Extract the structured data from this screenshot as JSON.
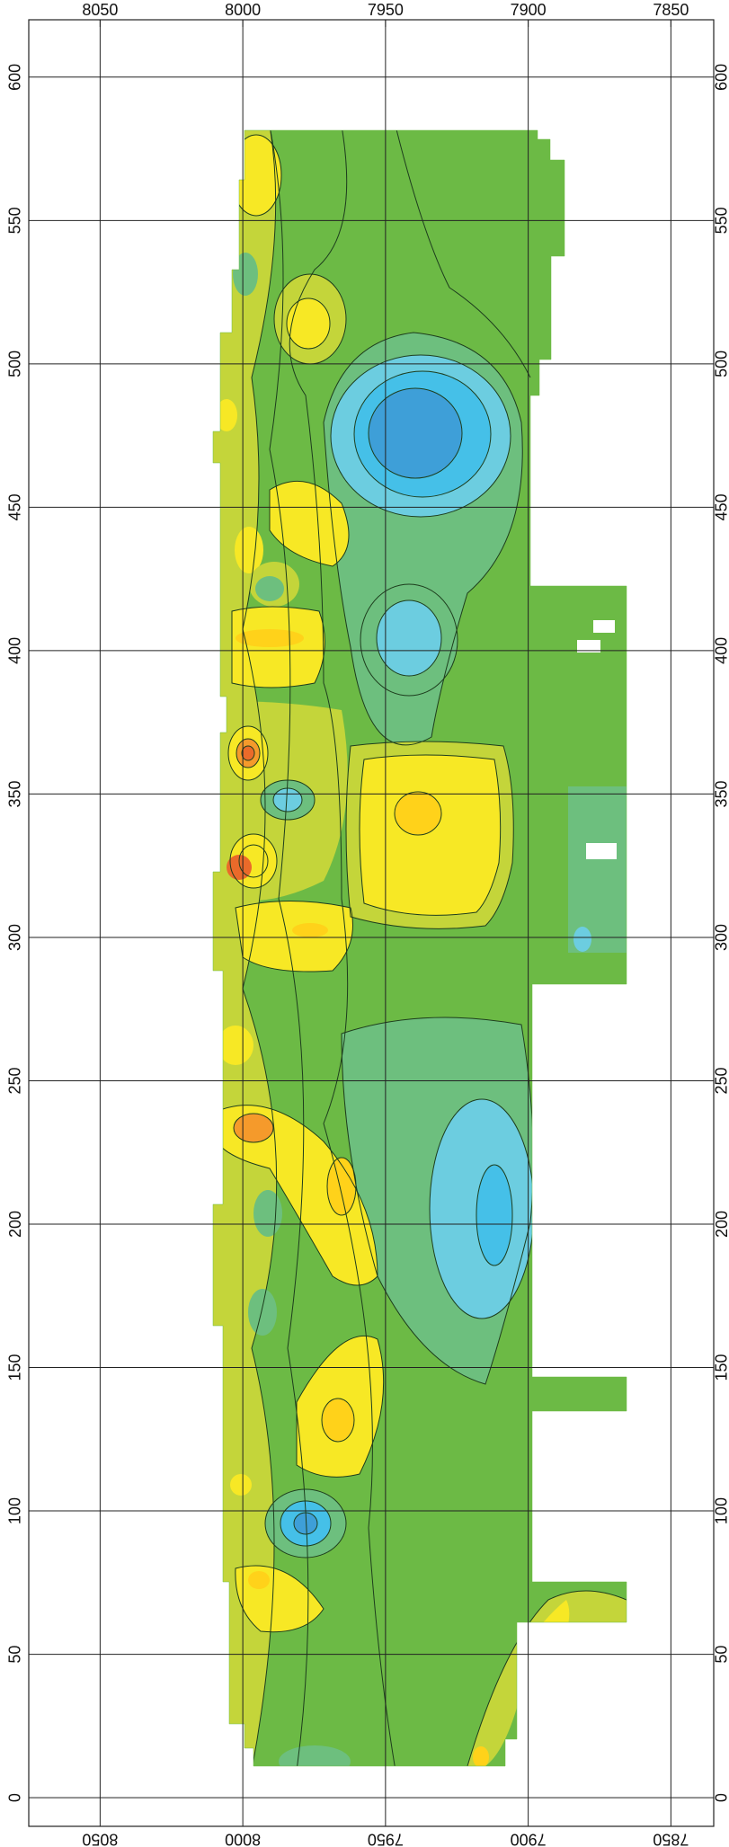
{
  "map": {
    "x_ticks": [
      "8050",
      "8000",
      "7950",
      "7900",
      "7850"
    ],
    "y_ticks": [
      "0",
      "50",
      "100",
      "150",
      "200",
      "250",
      "300",
      "350",
      "400",
      "450",
      "500",
      "550",
      "600"
    ],
    "x_range": [
      8075,
      7835
    ],
    "y_range": [
      -10,
      620
    ],
    "colors": {
      "light_green": "#8fc64a",
      "medium_green": "#6cba45",
      "teal_green": "#6dbf7e",
      "cyan": "#6ccde0",
      "sky_blue": "#45c0e8",
      "blue": "#3e9fd8",
      "yellow_green": "#c4d53a",
      "yellow": "#f7e825",
      "gold": "#ffd21a",
      "orange": "#f59a2b",
      "red_orange": "#ea6a2a",
      "contour": "#1d3d1d",
      "grid": "#222222"
    }
  }
}
